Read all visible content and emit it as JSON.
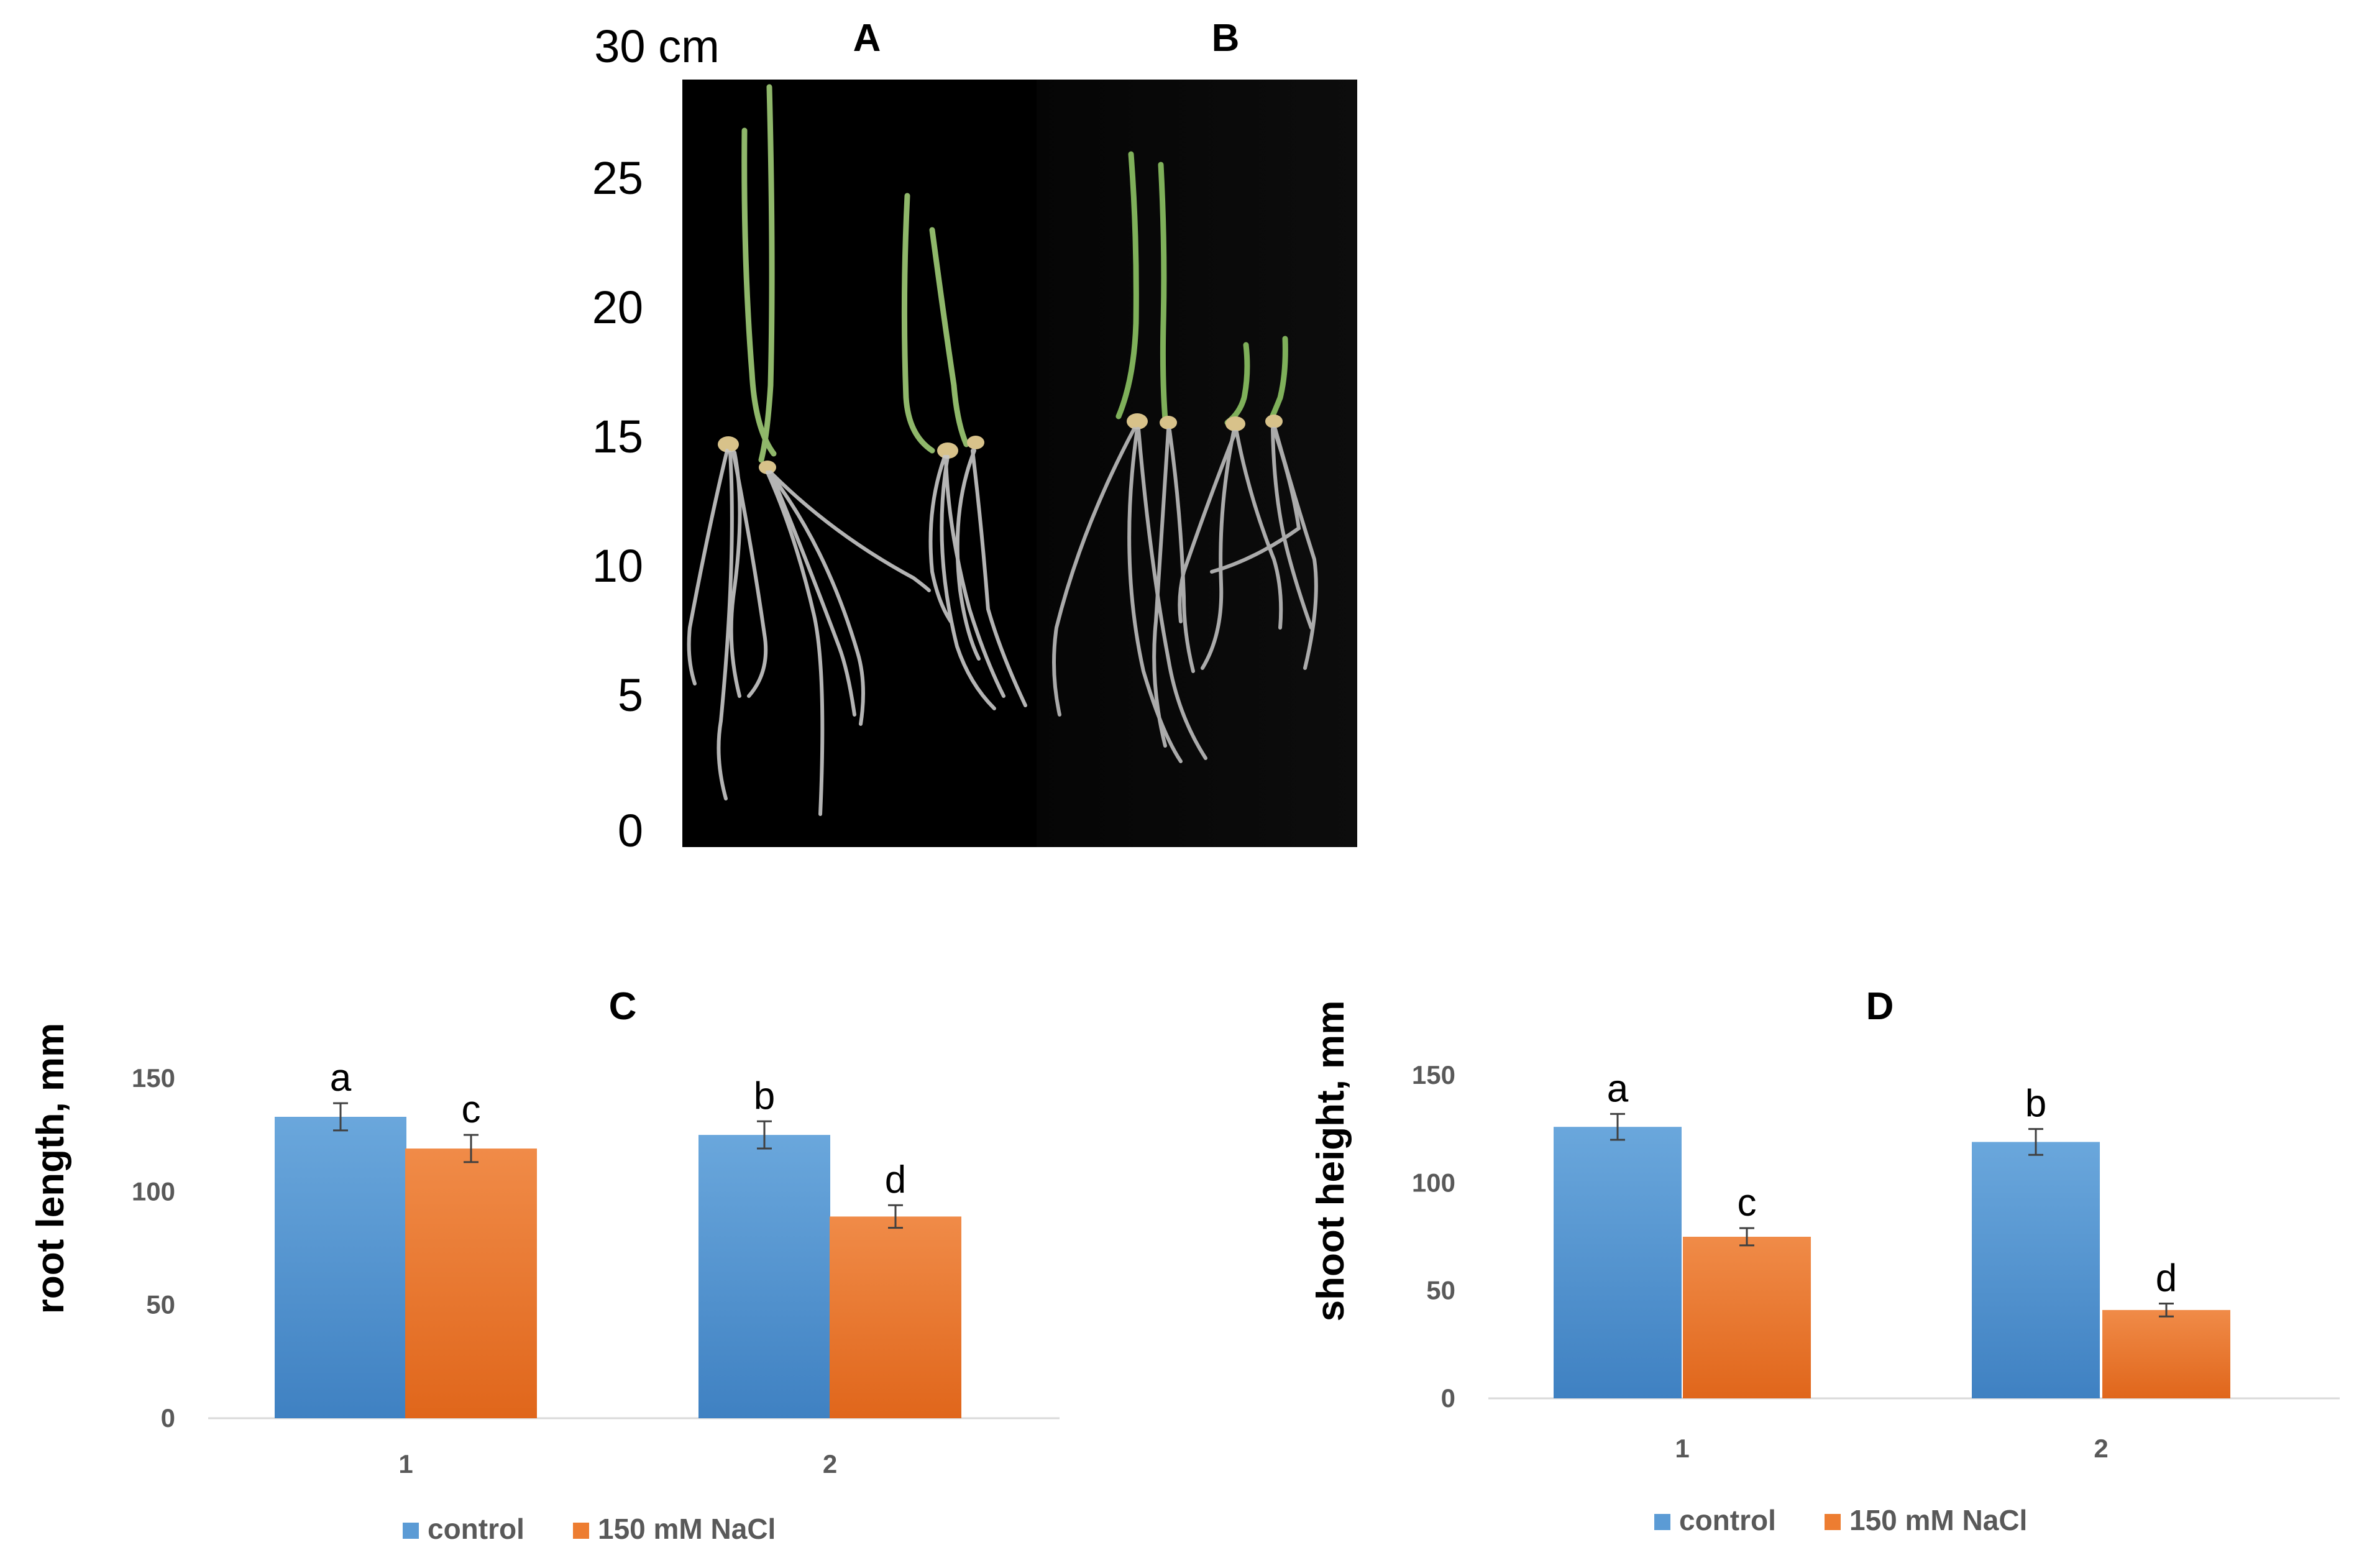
{
  "photo_panel": {
    "scale_unit_label": "30 cm",
    "scale_ticks": [
      "25",
      "20",
      "15",
      "10",
      "5",
      "0"
    ],
    "panel_a_label": "A",
    "panel_b_label": "B"
  },
  "colors": {
    "control": "#5b9bd5",
    "control_dark": "#3f81c2",
    "nacl": "#ed7d31",
    "nacl_dark": "#e0661b",
    "axis": "#d9d9d9",
    "text": "#595959"
  },
  "chart_data": [
    {
      "type": "bar",
      "panel": "C",
      "title": "C",
      "ylabel": "root length, mm",
      "xlabel": "",
      "categories": [
        "1",
        "2"
      ],
      "ylim": [
        0,
        150
      ],
      "yticks": [
        0,
        50,
        100,
        150
      ],
      "grid": false,
      "legend_position": "bottom",
      "series": [
        {
          "name": "control",
          "values": [
            133,
            125
          ],
          "errors": [
            6,
            6
          ],
          "labels": [
            "a",
            "b"
          ]
        },
        {
          "name": "150 mM NaCl",
          "values": [
            119,
            89
          ],
          "errors": [
            6,
            5
          ],
          "labels": [
            "c",
            "d"
          ]
        }
      ]
    },
    {
      "type": "bar",
      "panel": "D",
      "title": "D",
      "ylabel": "shoot height, mm",
      "xlabel": "",
      "categories": [
        "1",
        "2"
      ],
      "ylim": [
        0,
        150
      ],
      "yticks": [
        0,
        50,
        100,
        150
      ],
      "grid": false,
      "legend_position": "bottom",
      "series": [
        {
          "name": "control",
          "values": [
            126,
            119
          ],
          "errors": [
            6,
            6
          ],
          "labels": [
            "a",
            "b"
          ]
        },
        {
          "name": "150 mM NaCl",
          "values": [
            75,
            41
          ],
          "errors": [
            4,
            3
          ],
          "labels": [
            "c",
            "d"
          ]
        }
      ]
    }
  ]
}
